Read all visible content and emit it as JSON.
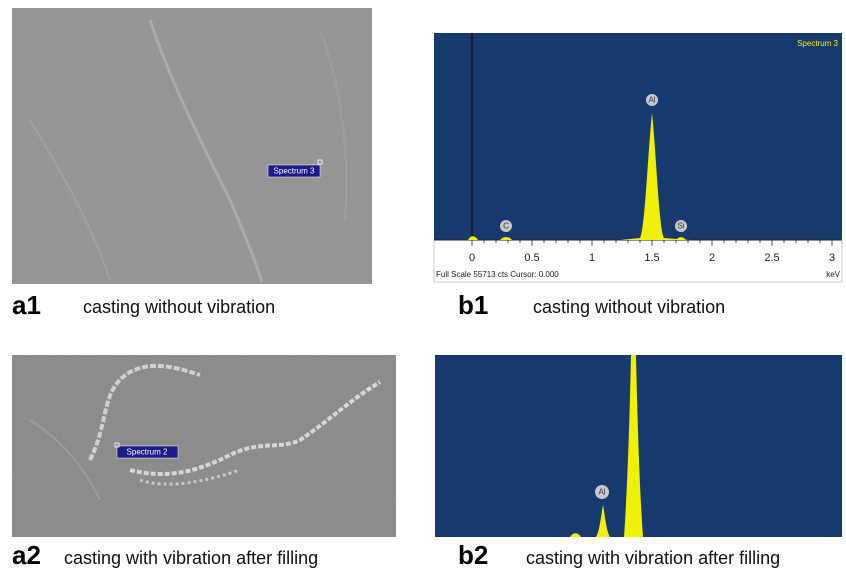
{
  "panels": [
    {
      "label": "a1",
      "caption": "casting without vibration",
      "marker": "Spectrum 3"
    },
    {
      "label": "b1",
      "caption": "casting without vibration",
      "spectrum": {
        "title": "Spectrum 3",
        "ticks": [
          "0",
          "0.5",
          "1",
          "1.5",
          "2",
          "2.5",
          "3"
        ],
        "unit": "keV",
        "status": "Full Scale 55713 cts Cursor: 0.000",
        "peaks": [
          "C",
          "Al",
          "Si"
        ]
      }
    },
    {
      "label": "a2",
      "caption": "casting with vibration after filling",
      "marker": "Spectrum 2"
    },
    {
      "label": "b2",
      "caption": "casting with vibration after filling",
      "spectrum": {
        "peaks": [
          "Al"
        ]
      }
    }
  ]
}
